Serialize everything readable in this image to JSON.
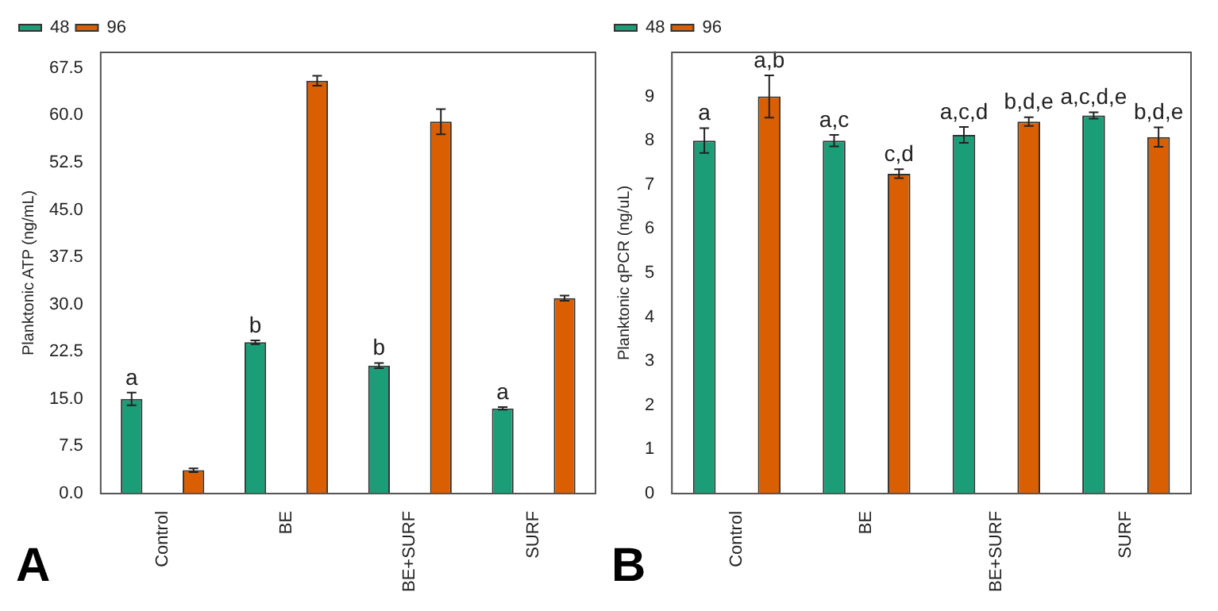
{
  "chart_data": [
    {
      "type": "bar",
      "ylabel": "Planktonic ATP (ng/mL)",
      "categories": [
        "Control",
        "BE",
        "BE+SURF",
        "SURF"
      ],
      "series": [
        {
          "name": "48",
          "color": "#1b9e77",
          "values": [
            15,
            24,
            20.3,
            13.5
          ],
          "errors": [
            1,
            0.3,
            0.4,
            0.2
          ],
          "value_labels": [
            "a",
            "b",
            "b",
            "a"
          ]
        },
        {
          "name": "96",
          "color": "#d95f02",
          "values": [
            3.7,
            65.5,
            59,
            31
          ],
          "errors": [
            0.3,
            0.8,
            2,
            0.4
          ]
        }
      ],
      "ylim": [
        0,
        70
      ],
      "yticks": [
        {
          "value": 0,
          "label": "0.0"
        },
        7.5,
        {
          "value": 15,
          "label": "15.0"
        },
        22.5,
        {
          "value": 30,
          "label": "30.0"
        },
        37.5,
        {
          "value": 45,
          "label": "45.0"
        },
        52.5,
        {
          "value": 60,
          "label": "60.0"
        },
        67.5
      ],
      "grid": false,
      "legend": "top left",
      "annotations": [
        "A"
      ]
    },
    {
      "type": "bar",
      "ylabel": "Planktonic qPCR (ng/uL)",
      "categories": [
        "Control",
        "BE",
        "BE+SURF",
        "SURF"
      ],
      "series": [
        {
          "name": "48",
          "color": "#1b9e77",
          "values": [
            8.0,
            8.0,
            8.13,
            8.57
          ],
          "errors": [
            0.28,
            0.13,
            0.18,
            0.07
          ],
          "value_labels": [
            "a",
            "a,c",
            "a,c,d",
            "a,c,d,e"
          ]
        },
        {
          "name": "96",
          "color": "#d95f02",
          "values": [
            9.0,
            7.25,
            8.43,
            8.08
          ],
          "errors": [
            0.48,
            0.1,
            0.1,
            0.22
          ],
          "value_labels": [
            "a,b",
            "c,d",
            "b,d,e",
            "b,d,e"
          ]
        }
      ],
      "ylim": [
        0,
        10
      ],
      "yticks": [
        0,
        1,
        2,
        3,
        4,
        5,
        6,
        7,
        8,
        9
      ],
      "grid": false,
      "legend": "top left",
      "annotations": [
        "B"
      ]
    }
  ]
}
